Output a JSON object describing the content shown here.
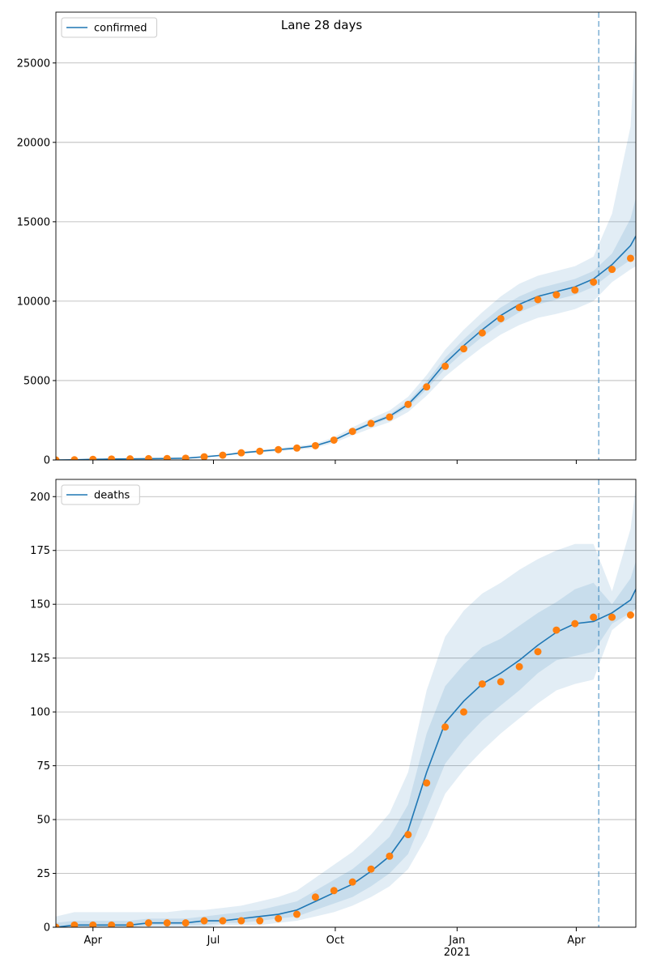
{
  "chart_data": [
    {
      "type": "line",
      "title": "Lane 28 days",
      "x": [
        "2020-03-04",
        "2020-03-18",
        "2020-04-01",
        "2020-04-15",
        "2020-04-29",
        "2020-05-13",
        "2020-05-27",
        "2020-06-10",
        "2020-06-24",
        "2020-07-08",
        "2020-07-22",
        "2020-08-05",
        "2020-08-19",
        "2020-09-02",
        "2020-09-16",
        "2020-09-30",
        "2020-10-14",
        "2020-10-28",
        "2020-11-11",
        "2020-11-25",
        "2020-12-09",
        "2020-12-23",
        "2021-01-06",
        "2021-01-20",
        "2021-02-03",
        "2021-02-17",
        "2021-03-03",
        "2021-03-17",
        "2021-03-31",
        "2021-04-14",
        "2021-04-28",
        "2021-05-12",
        "2021-05-16"
      ],
      "series": [
        {
          "name": "confirmed",
          "color": "#1f77b4",
          "values": [
            0,
            10,
            40,
            60,
            70,
            80,
            90,
            110,
            200,
            300,
            450,
            550,
            650,
            750,
            900,
            1250,
            1800,
            2300,
            2750,
            3500,
            4700,
            6100,
            7200,
            8200,
            9100,
            9800,
            10300,
            10600,
            10900,
            11400,
            12300,
            13500,
            14100
          ]
        },
        {
          "kind": "scatter",
          "color": "#ff7f0e",
          "values": [
            0,
            10,
            40,
            60,
            70,
            80,
            90,
            110,
            200,
            300,
            450,
            550,
            650,
            750,
            900,
            1250,
            1800,
            2300,
            2700,
            3500,
            4600,
            5900,
            7000,
            8000,
            8900,
            9600,
            10100,
            10400,
            10700,
            11200,
            12000,
            12700,
            null
          ]
        }
      ],
      "bands": [
        {
          "color": "#1f77b4",
          "lower": [
            0,
            8,
            33,
            50,
            59,
            67,
            76,
            93,
            170,
            255,
            385,
            470,
            555,
            640,
            770,
            1080,
            1550,
            1990,
            2380,
            3020,
            4050,
            5250,
            6200,
            7100,
            7900,
            8500,
            8950,
            9200,
            9500,
            10000,
            11200,
            12000,
            12200
          ],
          "upper": [
            0,
            12,
            47,
            70,
            81,
            93,
            104,
            127,
            230,
            345,
            515,
            630,
            745,
            860,
            1030,
            1420,
            2050,
            2610,
            3120,
            3980,
            5350,
            6950,
            8200,
            9300,
            10300,
            11100,
            11600,
            11900,
            12200,
            12800,
            15500,
            21000,
            27000
          ]
        },
        {
          "color": "#1f77b4",
          "lower": [
            0,
            9,
            37,
            56,
            66,
            75,
            85,
            104,
            190,
            285,
            430,
            525,
            620,
            715,
            860,
            1200,
            1720,
            2200,
            2620,
            3320,
            4450,
            5750,
            6800,
            7750,
            8600,
            9300,
            9800,
            10100,
            10400,
            10900,
            11800,
            12600,
            12900
          ],
          "upper": [
            0,
            11,
            43,
            64,
            74,
            85,
            95,
            116,
            210,
            315,
            470,
            575,
            680,
            785,
            940,
            1300,
            1880,
            2400,
            2880,
            3680,
            4950,
            6450,
            7600,
            8650,
            9600,
            10300,
            10800,
            11100,
            11400,
            11900,
            13000,
            15200,
            16500
          ]
        }
      ],
      "vline": "2021-04-18",
      "xlim": [
        "2020-03-04",
        "2021-05-16"
      ],
      "xticks": [
        "2020-04-01",
        "2020-07-01",
        "2020-10-01",
        "2021-01-01",
        "2021-04-01"
      ],
      "ylim": [
        0,
        28200
      ],
      "yticks": [
        0,
        5000,
        10000,
        15000,
        20000,
        25000
      ],
      "grid": true,
      "legend": "upper left"
    },
    {
      "type": "line",
      "x": [
        "2020-03-04",
        "2020-03-18",
        "2020-04-01",
        "2020-04-15",
        "2020-04-29",
        "2020-05-13",
        "2020-05-27",
        "2020-06-10",
        "2020-06-24",
        "2020-07-08",
        "2020-07-22",
        "2020-08-05",
        "2020-08-19",
        "2020-09-02",
        "2020-09-16",
        "2020-09-30",
        "2020-10-14",
        "2020-10-28",
        "2020-11-11",
        "2020-11-25",
        "2020-12-09",
        "2020-12-23",
        "2021-01-06",
        "2021-01-20",
        "2021-02-03",
        "2021-02-17",
        "2021-03-03",
        "2021-03-17",
        "2021-03-31",
        "2021-04-14",
        "2021-04-28",
        "2021-05-12",
        "2021-05-16"
      ],
      "series": [
        {
          "name": "deaths",
          "color": "#1f77b4",
          "values": [
            0,
            1,
            1,
            1,
            1,
            2,
            2,
            2,
            3,
            3,
            4,
            5,
            6,
            8,
            12,
            16,
            20,
            26,
            33,
            45,
            72,
            95,
            105,
            113,
            118,
            124,
            131,
            137,
            141,
            142,
            146,
            152,
            157
          ]
        },
        {
          "kind": "scatter",
          "color": "#ff7f0e",
          "values": [
            0,
            1,
            1,
            1,
            1,
            2,
            2,
            2,
            3,
            3,
            3,
            3,
            4,
            6,
            14,
            17,
            21,
            27,
            33,
            43,
            67,
            93,
            100,
            113,
            114,
            121,
            128,
            138,
            141,
            144,
            144,
            145,
            null
          ]
        }
      ],
      "bands": [
        {
          "color": "#1f77b4",
          "lower": [
            0,
            0,
            0,
            0,
            0,
            0,
            0,
            0,
            0,
            1,
            1,
            1,
            2,
            3,
            5,
            7,
            10,
            14,
            19,
            27,
            42,
            62,
            73,
            82,
            90,
            97,
            104,
            110,
            113,
            115,
            138,
            145,
            148
          ],
          "upper": [
            5,
            7,
            7,
            7,
            7,
            7,
            7,
            8,
            8,
            9,
            10,
            12,
            14,
            17,
            23,
            29,
            35,
            43,
            53,
            72,
            110,
            135,
            147,
            155,
            160,
            166,
            171,
            175,
            178,
            178,
            156,
            185,
            205
          ]
        },
        {
          "color": "#1f77b4",
          "lower": [
            0,
            0,
            0,
            0,
            0,
            1,
            1,
            1,
            1,
            2,
            2,
            3,
            4,
            5,
            8,
            11,
            14,
            19,
            25,
            34,
            55,
            76,
            87,
            96,
            103,
            110,
            118,
            124,
            126,
            128,
            141,
            146,
            148
          ],
          "upper": [
            2,
            3,
            3,
            3,
            3,
            4,
            4,
            4,
            5,
            6,
            7,
            8,
            10,
            12,
            17,
            22,
            27,
            34,
            42,
            57,
            90,
            112,
            122,
            130,
            134,
            140,
            146,
            151,
            157,
            160,
            150,
            162,
            170
          ]
        }
      ],
      "vline": "2021-04-18",
      "xlim": [
        "2020-03-04",
        "2021-05-16"
      ],
      "xticks": [
        "2020-04-01",
        "2020-07-01",
        "2020-10-01",
        {
          "value": "2021-01-01",
          "label": "Jan\n2021"
        },
        "2021-04-01"
      ],
      "xtick_labels": [
        "Apr",
        "Jul",
        "Oct",
        null,
        "Apr"
      ],
      "ylim": [
        0,
        208
      ],
      "yticks": [
        0,
        25,
        50,
        75,
        100,
        125,
        150,
        175,
        200
      ],
      "grid": true,
      "legend": "upper left"
    }
  ]
}
